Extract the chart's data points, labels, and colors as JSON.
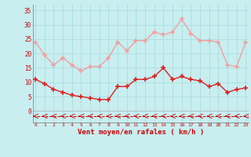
{
  "hours": [
    0,
    1,
    2,
    3,
    4,
    5,
    6,
    7,
    8,
    9,
    10,
    11,
    12,
    13,
    14,
    15,
    16,
    17,
    18,
    19,
    20,
    21,
    22,
    23
  ],
  "wind_avg": [
    11,
    9.5,
    7.5,
    6.5,
    5.5,
    5,
    4.5,
    4,
    4,
    8.5,
    8.5,
    11,
    11,
    12,
    15,
    11,
    12,
    11,
    10.5,
    8.5,
    9.5,
    6.5,
    7.5,
    8
  ],
  "wind_gust": [
    24,
    19.5,
    16,
    18.5,
    16,
    14,
    15.5,
    15.5,
    18.5,
    24,
    21,
    24.5,
    24.5,
    27.5,
    26.5,
    27.5,
    32,
    27,
    24.5,
    24.5,
    24,
    16,
    15.5,
    24
  ],
  "xlabel": "Vent moyen/en rafales ( km/h )",
  "ylim": [
    -4,
    37
  ],
  "yticks": [
    0,
    5,
    10,
    15,
    20,
    25,
    30,
    35
  ],
  "bg_color": "#c8eef0",
  "grid_color": "#aadddd",
  "line_avg_color": "#dd2222",
  "line_gust_color": "#f0a0a0",
  "marker_size": 4,
  "line_width": 1.0,
  "xlabel_color": "#cc0000",
  "tick_color": "#cc0000",
  "dash_color": "#cc0000",
  "axis_color": "#888888"
}
